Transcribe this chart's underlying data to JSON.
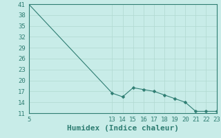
{
  "x_data": [
    5,
    13,
    14,
    15,
    16,
    17,
    18,
    19,
    20,
    21,
    22,
    23
  ],
  "y_data": [
    41,
    16.5,
    15.5,
    18,
    17.5,
    17,
    16,
    15,
    14,
    11.5,
    11.5,
    11.5
  ],
  "xlabel": "Humidex (Indice chaleur)",
  "xlim": [
    5,
    23
  ],
  "ylim": [
    11,
    41
  ],
  "yticks": [
    11,
    14,
    17,
    20,
    23,
    26,
    29,
    32,
    35,
    38,
    41
  ],
  "xticks_labeled": [
    5,
    13,
    14,
    15,
    16,
    17,
    18,
    19,
    20,
    21,
    22,
    23
  ],
  "xticks_all": [
    5,
    6,
    7,
    8,
    9,
    10,
    11,
    12,
    13,
    14,
    15,
    16,
    17,
    18,
    19,
    20,
    21,
    22,
    23
  ],
  "line_color": "#2e7d72",
  "marker_color": "#2e7d72",
  "bg_color": "#c8ece8",
  "grid_color": "#b0d8d0",
  "axes_color": "#2e7d72",
  "xlabel_fontsize": 8,
  "tick_fontsize": 6.5
}
